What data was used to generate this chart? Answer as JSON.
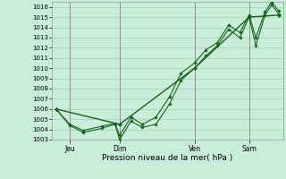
{
  "title": "",
  "xlabel": "Pression niveau de la mer( hPa )",
  "ylim": [
    1003,
    1016.5
  ],
  "yticks": [
    1003,
    1004,
    1005,
    1006,
    1007,
    1008,
    1009,
    1010,
    1011,
    1012,
    1013,
    1014,
    1015,
    1016
  ],
  "background_color": "#c8edd8",
  "grid_color": "#b0ccb8",
  "line_color1": "#1a6020",
  "line_color2": "#1a6020",
  "line_color3": "#1a6020",
  "vline_color": "#888888",
  "day_labels": [
    "Jeu",
    "Dim",
    "Ven",
    "Sam"
  ],
  "day_positions": [
    0.08,
    0.3,
    0.63,
    0.87
  ],
  "series1_x": [
    0.02,
    0.08,
    0.14,
    0.22,
    0.28,
    0.3,
    0.35,
    0.4,
    0.46,
    0.52,
    0.57,
    0.63,
    0.68,
    0.73,
    0.78,
    0.83,
    0.87,
    0.9,
    0.94,
    0.97,
    1.0
  ],
  "series1_y": [
    1006.0,
    1004.4,
    1003.7,
    1004.1,
    1004.5,
    1003.0,
    1004.8,
    1004.2,
    1004.5,
    1006.5,
    1008.8,
    1010.0,
    1011.2,
    1012.2,
    1013.8,
    1013.0,
    1015.0,
    1012.2,
    1015.2,
    1016.2,
    1015.3
  ],
  "series2_x": [
    0.02,
    0.08,
    0.14,
    0.22,
    0.28,
    0.3,
    0.35,
    0.4,
    0.46,
    0.52,
    0.57,
    0.63,
    0.68,
    0.73,
    0.78,
    0.83,
    0.87,
    0.9,
    0.94,
    0.97,
    1.0
  ],
  "series2_y": [
    1006.0,
    1004.5,
    1003.9,
    1004.3,
    1004.6,
    1003.4,
    1005.2,
    1004.5,
    1005.2,
    1007.2,
    1009.5,
    1010.5,
    1011.8,
    1012.5,
    1014.2,
    1013.5,
    1015.2,
    1013.0,
    1015.5,
    1016.5,
    1015.6
  ],
  "series3_x": [
    0.02,
    0.3,
    0.63,
    0.87,
    1.0
  ],
  "series3_y": [
    1006.0,
    1004.5,
    1010.0,
    1015.0,
    1015.2
  ],
  "vlines": [
    0.08,
    0.3,
    0.63,
    0.87
  ]
}
